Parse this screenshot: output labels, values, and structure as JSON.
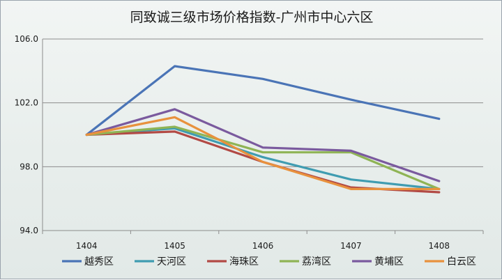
{
  "chart_data": {
    "type": "line",
    "title": "同致诚三级市场价格指数-广州市中心六区",
    "xlabel": "",
    "ylabel": "",
    "categories": [
      "1404",
      "1405",
      "1406",
      "1407",
      "1408"
    ],
    "y_ticks": [
      "94.0",
      "98.0",
      "102.0",
      "106.0"
    ],
    "ylim": [
      94,
      106
    ],
    "grid": true,
    "legend_position": "bottom",
    "series": [
      {
        "name": "越秀区",
        "color": "#4a74b6",
        "values": [
          100.0,
          104.3,
          103.5,
          102.2,
          101.0
        ]
      },
      {
        "name": "天河区",
        "color": "#3f9cb1",
        "values": [
          100.0,
          100.4,
          98.6,
          97.2,
          96.6
        ]
      },
      {
        "name": "海珠区",
        "color": "#b24a45",
        "values": [
          100.0,
          100.2,
          98.3,
          96.7,
          96.4
        ]
      },
      {
        "name": "荔湾区",
        "color": "#8fb455",
        "values": [
          100.0,
          100.5,
          98.9,
          98.9,
          96.6
        ]
      },
      {
        "name": "黄埔区",
        "color": "#7a5a9e",
        "values": [
          100.0,
          101.6,
          99.2,
          99.0,
          97.1
        ]
      },
      {
        "name": "白云区",
        "color": "#e8913d",
        "values": [
          100.0,
          101.1,
          98.3,
          96.6,
          96.6
        ]
      }
    ]
  }
}
